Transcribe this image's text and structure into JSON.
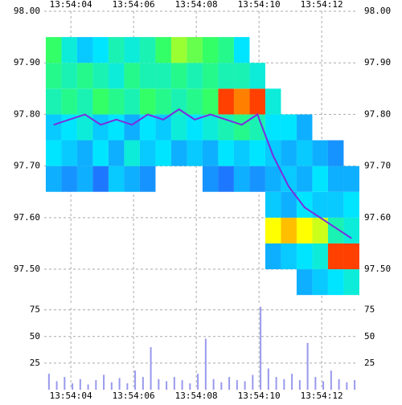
{
  "chart_data": [
    {
      "type": "heatmap",
      "x_edges": [
        3.2,
        3.7,
        4.2,
        4.7,
        5.2,
        5.7,
        6.2,
        6.7,
        7.2,
        7.7,
        8.2,
        8.7,
        9.2,
        9.7,
        10.2,
        10.7,
        11.2,
        11.7,
        12.2,
        12.7,
        13.2
      ],
      "y_edges": [
        97.45,
        97.5,
        97.55,
        97.6,
        97.65,
        97.7,
        97.75,
        97.8,
        97.85,
        97.9,
        97.95
      ],
      "values": [
        [
          null,
          null,
          null,
          null,
          0.3,
          0.4,
          0.35,
          0.5,
          0.55,
          0.6
        ],
        [
          null,
          null,
          null,
          null,
          0.25,
          0.35,
          0.4,
          0.55,
          0.5,
          0.45
        ],
        [
          null,
          null,
          null,
          null,
          0.3,
          0.3,
          0.45,
          0.5,
          0.55,
          0.35
        ],
        [
          null,
          null,
          null,
          null,
          0.2,
          0.4,
          0.35,
          0.6,
          0.5,
          0.4
        ],
        [
          null,
          null,
          null,
          null,
          0.35,
          0.3,
          0.4,
          0.55,
          0.45,
          0.5
        ],
        [
          null,
          null,
          null,
          null,
          0.3,
          0.45,
          0.3,
          0.5,
          0.55,
          0.45
        ],
        [
          null,
          null,
          null,
          null,
          0.25,
          0.35,
          0.4,
          0.6,
          0.5,
          0.5
        ],
        [
          null,
          null,
          null,
          null,
          null,
          0.4,
          0.35,
          0.55,
          0.5,
          0.6
        ],
        [
          null,
          null,
          null,
          null,
          null,
          0.3,
          0.45,
          0.5,
          0.55,
          0.7
        ],
        [
          null,
          null,
          null,
          null,
          null,
          0.35,
          0.4,
          0.55,
          0.5,
          0.65
        ],
        [
          null,
          null,
          null,
          null,
          0.25,
          0.3,
          0.45,
          0.6,
          0.55,
          0.6
        ],
        [
          null,
          null,
          null,
          null,
          0.2,
          0.4,
          0.5,
          0.95,
          0.5,
          0.55
        ],
        [
          null,
          null,
          null,
          null,
          0.3,
          0.35,
          0.55,
          0.9,
          0.5,
          0.4
        ],
        [
          null,
          null,
          null,
          null,
          0.25,
          0.4,
          0.5,
          0.95,
          0.45,
          null
        ],
        [
          null,
          0.3,
          0.8,
          0.35,
          0.3,
          0.35,
          0.4,
          0.45,
          null,
          null
        ],
        [
          null,
          0.35,
          0.85,
          0.3,
          0.35,
          0.3,
          0.4,
          null,
          null,
          null
        ],
        [
          0.3,
          0.4,
          0.8,
          0.4,
          0.3,
          0.35,
          0.3,
          null,
          null,
          null
        ],
        [
          0.35,
          0.45,
          0.75,
          0.35,
          0.4,
          0.3,
          null,
          null,
          null,
          null
        ],
        [
          0.4,
          0.95,
          0.5,
          0.35,
          0.3,
          0.25,
          null,
          null,
          null,
          null
        ],
        [
          0.45,
          0.95,
          0.45,
          0.4,
          0.3,
          null,
          null,
          null,
          null,
          null
        ]
      ],
      "colormap": [
        "#0000c8",
        "#1e78ff",
        "#00e5ff",
        "#33ff66",
        "#ffff00",
        "#ff0000"
      ],
      "mid": [
        97.78,
        97.79,
        97.8,
        97.78,
        97.79,
        97.78,
        97.8,
        97.79,
        97.81,
        97.79,
        97.8,
        97.79,
        97.78,
        97.8,
        97.72,
        97.66,
        97.62,
        97.6,
        97.58,
        97.56
      ],
      "mid_color": "#7a2ee0",
      "xlim": [
        3.15,
        13.15
      ],
      "ylim": [
        97.43,
        98.0
      ],
      "xticks": [
        {
          "value": 4,
          "label": "13:54:04"
        },
        {
          "value": 6,
          "label": "13:54:06"
        },
        {
          "value": 8,
          "label": "13:54:08"
        },
        {
          "value": 10,
          "label": "13:54:10"
        },
        {
          "value": 12,
          "label": "13:54:12"
        }
      ],
      "yticks": [
        {
          "value": 97.5,
          "label": "97.50"
        },
        {
          "value": 97.6,
          "label": "97.60"
        },
        {
          "value": 97.7,
          "label": "97.70"
        },
        {
          "value": 97.8,
          "label": "97.80"
        },
        {
          "value": 97.9,
          "label": "97.90"
        },
        {
          "value": 98.0,
          "label": "98.00"
        }
      ],
      "grid": true
    },
    {
      "type": "bar",
      "x": [
        3.3,
        3.55,
        3.8,
        4.05,
        4.3,
        4.55,
        4.8,
        5.05,
        5.3,
        5.55,
        5.8,
        6.05,
        6.3,
        6.55,
        6.8,
        7.05,
        7.3,
        7.55,
        7.8,
        8.05,
        8.3,
        8.55,
        8.8,
        9.05,
        9.3,
        9.55,
        9.8,
        10.05,
        10.3,
        10.55,
        10.8,
        11.05,
        11.3,
        11.55,
        11.8,
        12.05,
        12.3,
        12.55,
        12.8,
        13.05
      ],
      "values": [
        15,
        8,
        12,
        6,
        10,
        5,
        9,
        14,
        7,
        11,
        6,
        18,
        12,
        40,
        10,
        8,
        12,
        9,
        6,
        15,
        48,
        10,
        7,
        12,
        9,
        8,
        14,
        78,
        20,
        12,
        10,
        15,
        9,
        44,
        12,
        8,
        18,
        10,
        7,
        9
      ],
      "color": "#9999ee",
      "xlim": [
        3.15,
        13.15
      ],
      "ylim": [
        0,
        77
      ],
      "yticks": [
        25,
        50,
        75
      ],
      "xticks": [
        {
          "value": 4,
          "label": "13:54:04"
        },
        {
          "value": 6,
          "label": "13:54:06"
        },
        {
          "value": 8,
          "label": "13:54:08"
        },
        {
          "value": 10,
          "label": "13:54:10"
        },
        {
          "value": 12,
          "label": "13:54:12"
        }
      ],
      "grid": true
    }
  ]
}
